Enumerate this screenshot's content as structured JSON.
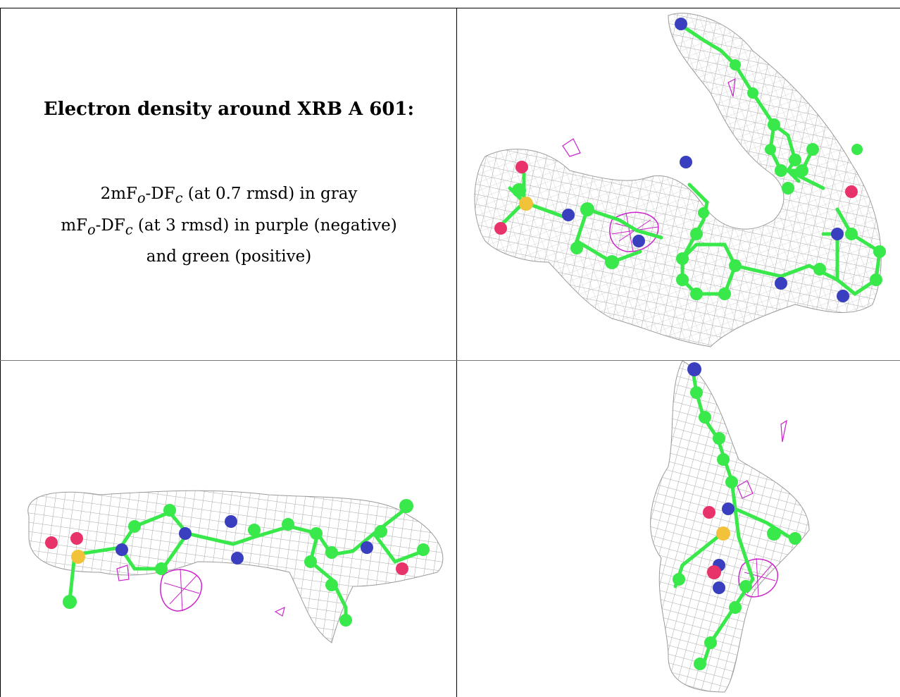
{
  "caption": {
    "title": "Electron density around XRB A 601:",
    "line1": {
      "prefix": "2mF",
      "sub1": "o",
      "mid": "-DF",
      "sub2": "c",
      "suffix": " (at 0.7 rmsd) in gray"
    },
    "line2": {
      "prefix": "mF",
      "sub1": "o",
      "mid": "-DF",
      "sub2": "c",
      "suffix": " (at 3 rmsd) in purple (negative)"
    },
    "line3": "and green (positive)"
  },
  "colors": {
    "carbon": "#39e84a",
    "nitrogen": "#3a3fbf",
    "oxygen": "#e8336a",
    "sulfur": "#f2c23a",
    "mesh_gray": "#9a9a9a",
    "mesh_purple": "#cc22cc"
  },
  "panels": [
    {
      "name": "top-left",
      "content": "caption"
    },
    {
      "name": "top-right",
      "content": "ligand-view-1"
    },
    {
      "name": "bottom-left",
      "content": "ligand-view-2"
    },
    {
      "name": "bottom-right",
      "content": "ligand-view-3"
    }
  ]
}
